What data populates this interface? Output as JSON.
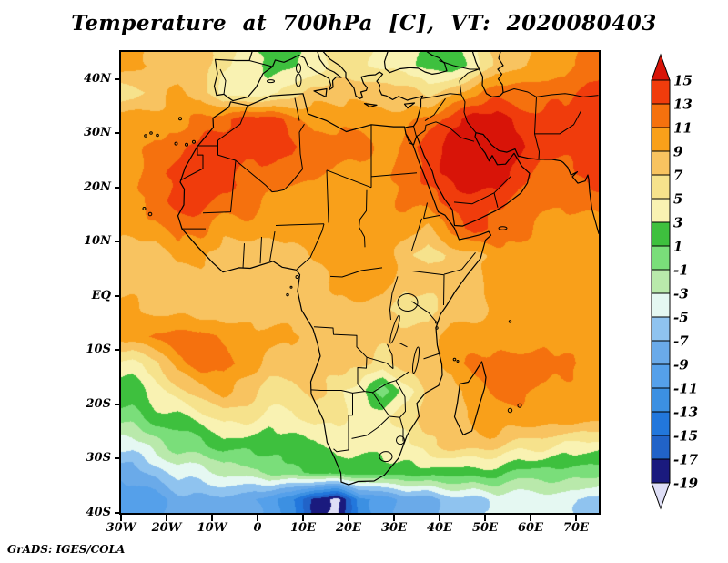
{
  "title": "Temperature at 700hPa [C], VT: 2020080403",
  "attribution": "GrADS: IGES/COLA",
  "axes": {
    "lat_labels": [
      "40N",
      "30N",
      "20N",
      "10N",
      "EQ",
      "10S",
      "20S",
      "30S",
      "40S"
    ],
    "lon_labels": [
      "30W",
      "20W",
      "10W",
      "0",
      "10E",
      "20E",
      "30E",
      "40E",
      "50E",
      "60E",
      "70E"
    ]
  },
  "colorbar": {
    "labels_top_to_bottom": [
      "15",
      "13",
      "11",
      "9",
      "7",
      "5",
      "3",
      "1",
      "-1",
      "-3",
      "-5",
      "-7",
      "-9",
      "-11",
      "-13",
      "-15",
      "-17",
      "-19"
    ],
    "colors_cold_to_hot": [
      "#dedef6",
      "#1a1a7e",
      "#2163c8",
      "#2277dc",
      "#3c90e2",
      "#55a0ea",
      "#6aaae9",
      "#8fc3ef",
      "#e5f8f2",
      "#b9e9ab",
      "#7ade7a",
      "#3ec03e",
      "#f9f2b2",
      "#f6e28c",
      "#f8c360",
      "#f9a01a",
      "#f5710e",
      "#f03c0c",
      "#d81408"
    ]
  },
  "chart_data": {
    "type": "heatmap",
    "title": "Temperature at 700hPa [C], VT: 2020080403",
    "units": "C",
    "projection": "equirectangular",
    "lon_range": [
      -30,
      75
    ],
    "lat_range": [
      -40,
      45
    ],
    "lon_tick_labels": [
      "30W",
      "20W",
      "10W",
      "0",
      "10E",
      "20E",
      "30E",
      "40E",
      "50E",
      "60E",
      "70E"
    ],
    "lat_tick_labels": [
      "40N",
      "30N",
      "20N",
      "10N",
      "EQ",
      "10S",
      "20S",
      "30S",
      "40S"
    ],
    "contour_levels": [
      -19,
      -17,
      -15,
      -13,
      -11,
      -9,
      -7,
      -5,
      -3,
      -1,
      1,
      3,
      5,
      7,
      9,
      11,
      13,
      15
    ],
    "grid": {
      "lon_start": -27.5,
      "lon_step": 5,
      "lat_start": 42.5,
      "lat_step": -5,
      "cols": 21,
      "rows": 17,
      "values": [
        [
          10,
          8,
          8,
          8,
          6,
          4,
          2,
          2,
          4,
          6,
          6,
          4,
          4,
          2,
          2,
          4,
          8,
          8,
          10,
          10,
          12
        ],
        [
          6,
          8,
          10,
          8,
          4,
          4,
          4,
          6,
          8,
          8,
          8,
          8,
          8,
          6,
          8,
          10,
          12,
          12,
          12,
          12,
          14
        ],
        [
          10,
          10,
          10,
          12,
          12,
          14,
          14,
          12,
          10,
          10,
          10,
          10,
          10,
          12,
          14,
          16,
          16,
          14,
          14,
          14,
          14
        ],
        [
          10,
          12,
          12,
          14,
          14,
          14,
          14,
          14,
          12,
          12,
          12,
          10,
          12,
          14,
          16,
          16,
          16,
          16,
          14,
          14,
          14
        ],
        [
          10,
          12,
          14,
          14,
          14,
          12,
          12,
          12,
          12,
          10,
          10,
          10,
          12,
          14,
          16,
          16,
          16,
          14,
          12,
          12,
          14
        ],
        [
          10,
          12,
          14,
          14,
          12,
          12,
          10,
          10,
          10,
          10,
          10,
          10,
          12,
          12,
          14,
          14,
          14,
          12,
          12,
          12,
          12
        ],
        [
          10,
          10,
          12,
          12,
          10,
          10,
          10,
          10,
          10,
          10,
          10,
          10,
          10,
          8,
          12,
          14,
          12,
          12,
          10,
          10,
          10
        ],
        [
          8,
          8,
          10,
          10,
          8,
          8,
          8,
          8,
          10,
          10,
          10,
          10,
          8,
          6,
          8,
          8,
          10,
          10,
          10,
          10,
          10
        ],
        [
          8,
          8,
          8,
          8,
          8,
          8,
          8,
          8,
          8,
          10,
          10,
          10,
          8,
          8,
          8,
          8,
          10,
          10,
          10,
          10,
          10
        ],
        [
          10,
          8,
          8,
          8,
          8,
          8,
          8,
          8,
          8,
          8,
          8,
          8,
          6,
          6,
          8,
          8,
          10,
          10,
          10,
          10,
          10
        ],
        [
          10,
          12,
          12,
          12,
          10,
          10,
          10,
          10,
          8,
          8,
          8,
          8,
          8,
          8,
          10,
          10,
          10,
          10,
          10,
          10,
          10
        ],
        [
          4,
          6,
          10,
          12,
          12,
          10,
          8,
          8,
          8,
          8,
          8,
          6,
          8,
          8,
          10,
          12,
          12,
          12,
          12,
          12,
          10
        ],
        [
          2,
          4,
          6,
          8,
          10,
          8,
          6,
          6,
          8,
          6,
          4,
          0,
          4,
          8,
          8,
          10,
          12,
          12,
          10,
          10,
          10
        ],
        [
          0,
          2,
          2,
          4,
          6,
          6,
          4,
          4,
          6,
          6,
          4,
          4,
          6,
          8,
          8,
          10,
          10,
          10,
          10,
          10,
          10
        ],
        [
          -4,
          -2,
          0,
          0,
          2,
          2,
          2,
          2,
          2,
          4,
          4,
          4,
          4,
          6,
          8,
          8,
          8,
          6,
          6,
          4,
          4
        ],
        [
          -8,
          -6,
          -4,
          -4,
          -2,
          -2,
          0,
          0,
          2,
          2,
          2,
          2,
          2,
          2,
          2,
          2,
          2,
          0,
          0,
          0,
          0
        ],
        [
          -10,
          -10,
          -8,
          -8,
          -8,
          -8,
          -10,
          -12,
          -18,
          -20,
          -12,
          -10,
          -8,
          -8,
          -6,
          -6,
          -4,
          -4,
          -4,
          -4,
          -6
        ]
      ]
    }
  }
}
